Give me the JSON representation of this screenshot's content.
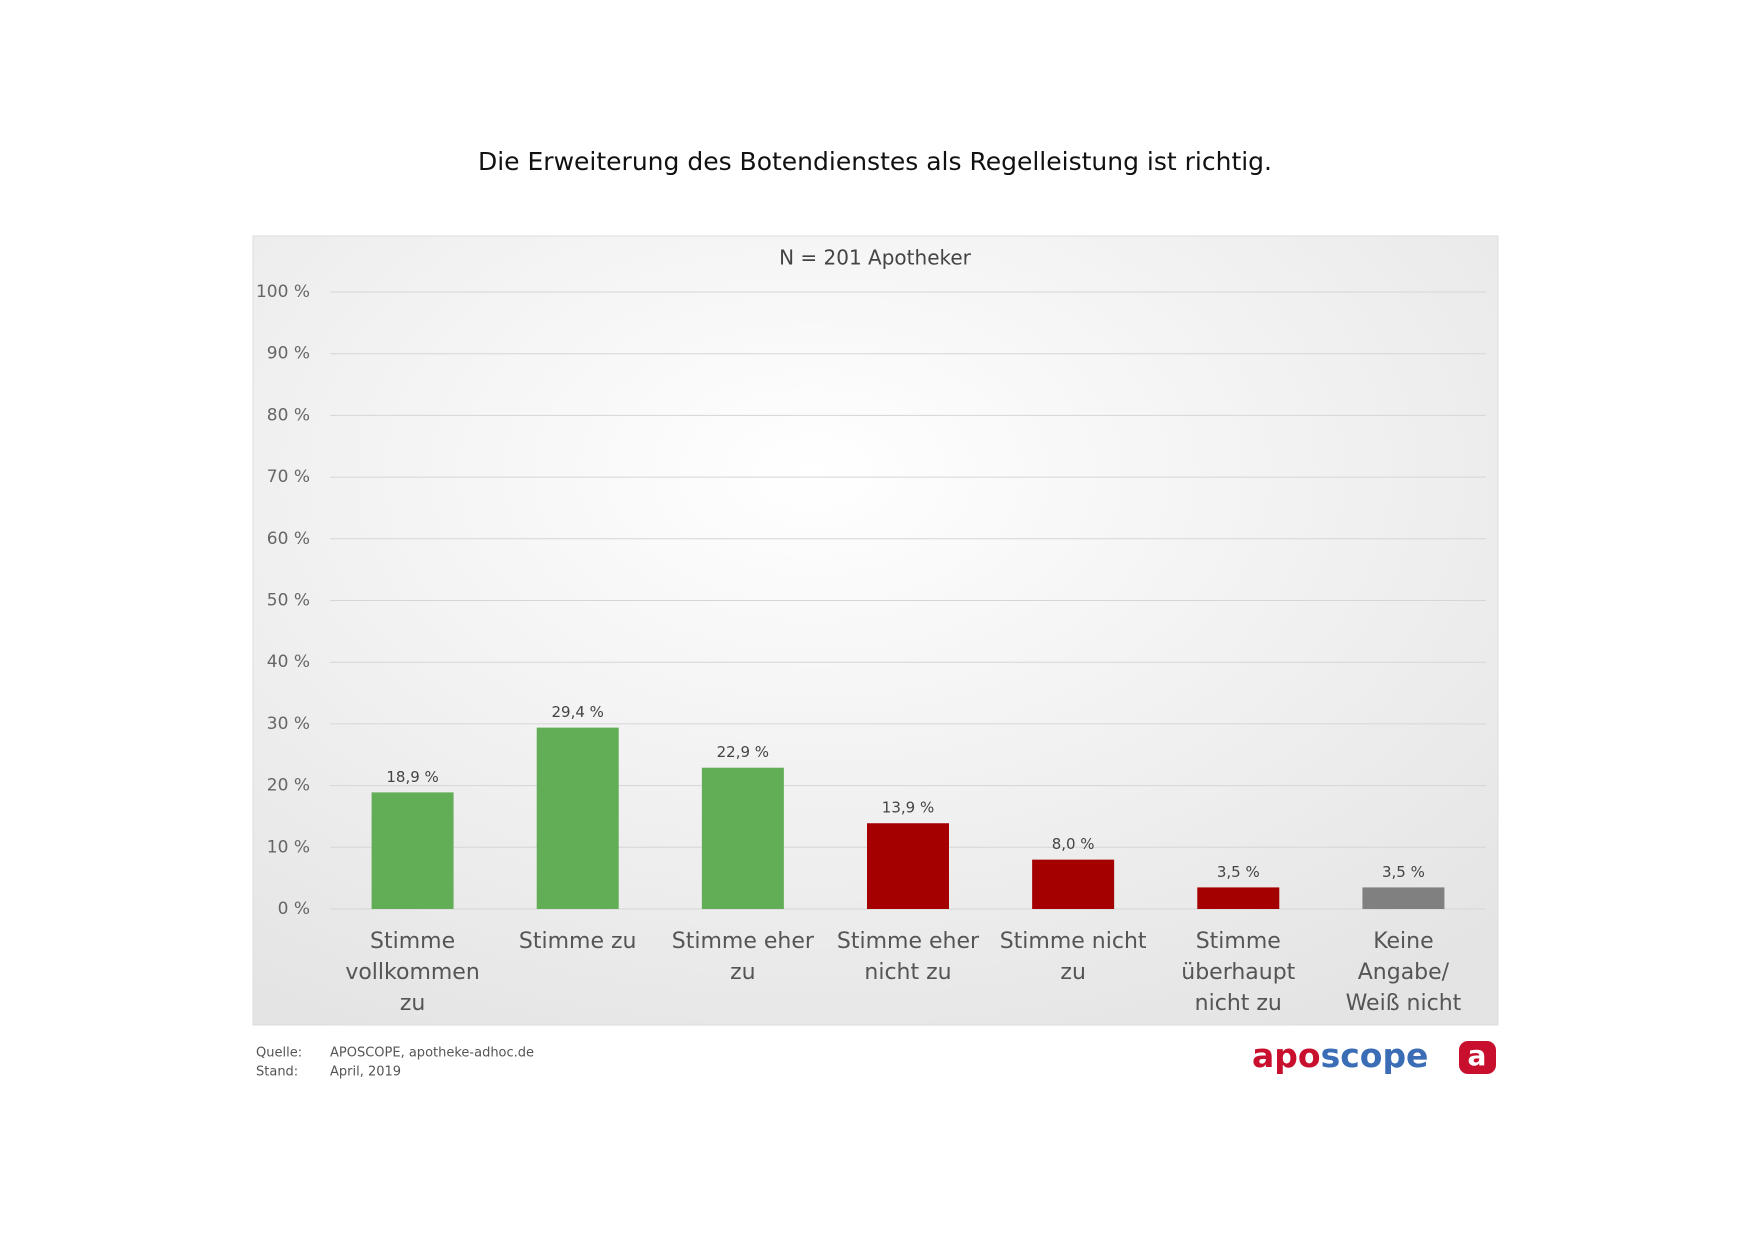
{
  "chart_data": {
    "type": "bar",
    "title": "Die Erweiterung des Botendienstes als Regelleistung ist richtig.",
    "subtitle": "N = 201 Apotheker",
    "categories": [
      "Stimme vollkommen zu",
      "Stimme zu",
      "Stimme eher zu",
      "Stimme eher nicht zu",
      "Stimme nicht zu",
      "Stimme überhaupt nicht zu",
      "Keine Angabe/ Weiß nicht"
    ],
    "values": [
      18.9,
      29.4,
      22.9,
      13.9,
      8.0,
      3.5,
      3.5
    ],
    "value_labels": [
      "18,9 %",
      "29,4 %",
      "22,9 %",
      "13,9 %",
      "8,0 %",
      "3,5 %",
      "3,5 %"
    ],
    "colors": [
      "#62ae56",
      "#62ae56",
      "#62ae56",
      "#a50000",
      "#a50000",
      "#a50000",
      "#808080"
    ],
    "ylim": [
      0,
      100
    ],
    "yticks": [
      {
        "value": 0,
        "label": "0 %"
      },
      {
        "value": 10,
        "label": "10 %"
      },
      {
        "value": 20,
        "label": "20 %"
      },
      {
        "value": 30,
        "label": "30 %"
      },
      {
        "value": 40,
        "label": "40 %"
      },
      {
        "value": 50,
        "label": "50 %"
      },
      {
        "value": 60,
        "label": "60 %"
      },
      {
        "value": 70,
        "label": "70 %"
      },
      {
        "value": 80,
        "label": "80 %"
      },
      {
        "value": 90,
        "label": "90 %"
      },
      {
        "value": 100,
        "label": "100 %"
      }
    ],
    "grid": true
  },
  "footer": {
    "source_label": "Quelle:",
    "source": "APOSCOPE, apotheke-adhoc.de",
    "date_label": "Stand:",
    "date": "April, 2019",
    "logo_parts": [
      "apo",
      "scope"
    ],
    "logo_icon": "a"
  }
}
